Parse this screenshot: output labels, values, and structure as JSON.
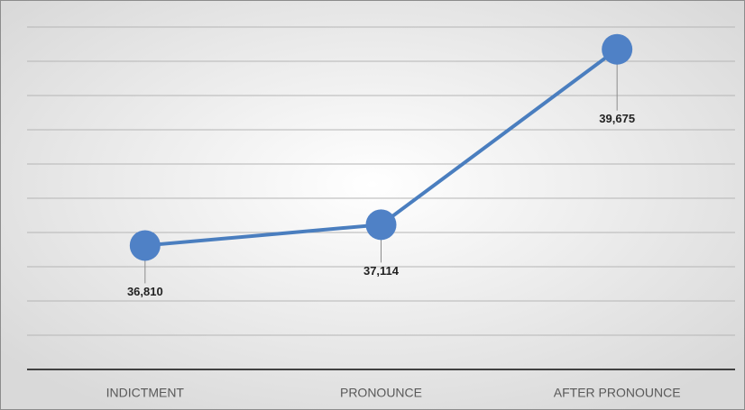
{
  "chart_data": {
    "type": "line",
    "categories": [
      "INDICTMENT",
      "PRONOUNCE",
      "AFTER PRONOUNCE"
    ],
    "values": [
      36810,
      37114,
      39675
    ],
    "value_labels": [
      "36,810",
      "37,114",
      "39,675"
    ],
    "color": "#4a7ebf",
    "ylim": [
      35000,
      40000
    ],
    "yticks": [
      35000,
      35500,
      36000,
      36500,
      37000,
      37500,
      38000,
      38500,
      39000,
      39500,
      40000
    ],
    "grid": true
  }
}
